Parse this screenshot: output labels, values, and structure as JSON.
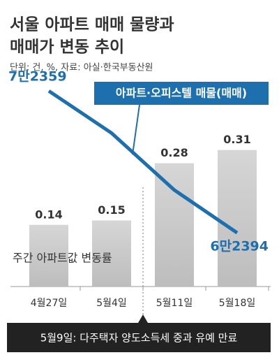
{
  "chart_data": {
    "type": "bar",
    "title": [
      "서울 아파트 매매 물량과",
      "매매가 변동 추이"
    ],
    "subtitle": "단위: 건, %, 자료: 아실·한국부동산원",
    "categories": [
      "4월27일",
      "5월4일",
      "5월11일",
      "5월18일"
    ],
    "series": [
      {
        "name": "주간 아파트값 변동률",
        "color": "#c4c4c4",
        "values": [
          0.14,
          0.15,
          0.28,
          0.31
        ]
      },
      {
        "name": "아파트·오피스텔 매물(매매)",
        "color": "#1d6fae",
        "type": "line",
        "axis": "y2",
        "values": [
          72359,
          69400,
          65400,
          62394
        ],
        "value_labels": [
          "7만2359",
          null,
          null,
          "6만2394"
        ]
      }
    ],
    "ylim": [
      0,
      0.33
    ],
    "y2lim": [
      60000,
      76000
    ],
    "annotation": "5월9일: 다주택자 양도소득세 중과 유예 만료"
  }
}
